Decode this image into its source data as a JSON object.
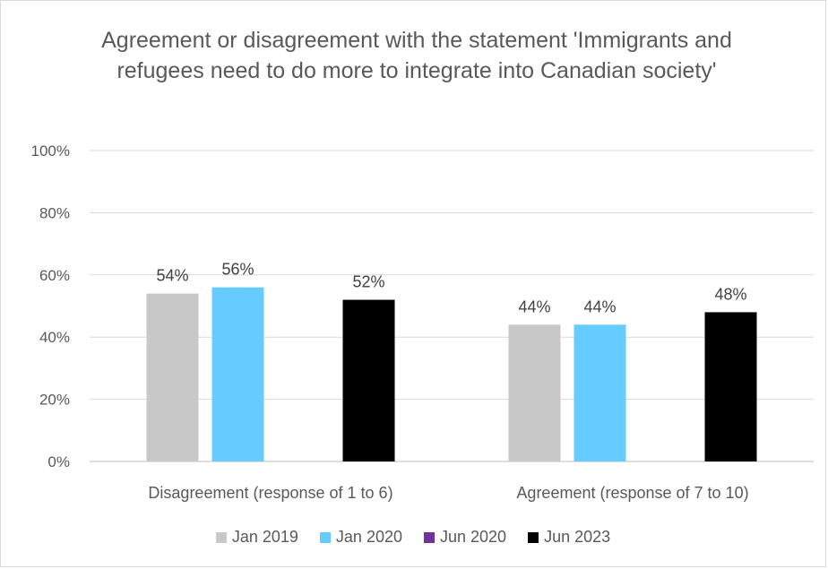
{
  "chart_data": {
    "type": "bar",
    "title": "Agreement or disagreement with the statement 'Immigrants and refugees need to do more to integrate into Canadian society'",
    "categories": [
      "Disagreement (response of 1 to 6)",
      "Agreement (response of 7 to 10)"
    ],
    "series": [
      {
        "name": "Jan 2019",
        "color": "#c8c8c8",
        "values": [
          54,
          44
        ],
        "labels": [
          "54%",
          "44%"
        ]
      },
      {
        "name": "Jan 2020",
        "color": "#66ccff",
        "values": [
          56,
          44
        ],
        "labels": [
          "56%",
          "44%"
        ]
      },
      {
        "name": "Jun 2020",
        "color": "#7030a0",
        "values": [
          null,
          null
        ],
        "labels": [
          "",
          ""
        ]
      },
      {
        "name": "Jun 2023",
        "color": "#000000",
        "values": [
          52,
          48
        ],
        "labels": [
          "52%",
          "48%"
        ]
      }
    ],
    "ylim": [
      0,
      100
    ],
    "yticks": [
      "0%",
      "20%",
      "40%",
      "60%",
      "80%",
      "100%"
    ],
    "grid": true,
    "legend_position": "bottom"
  }
}
